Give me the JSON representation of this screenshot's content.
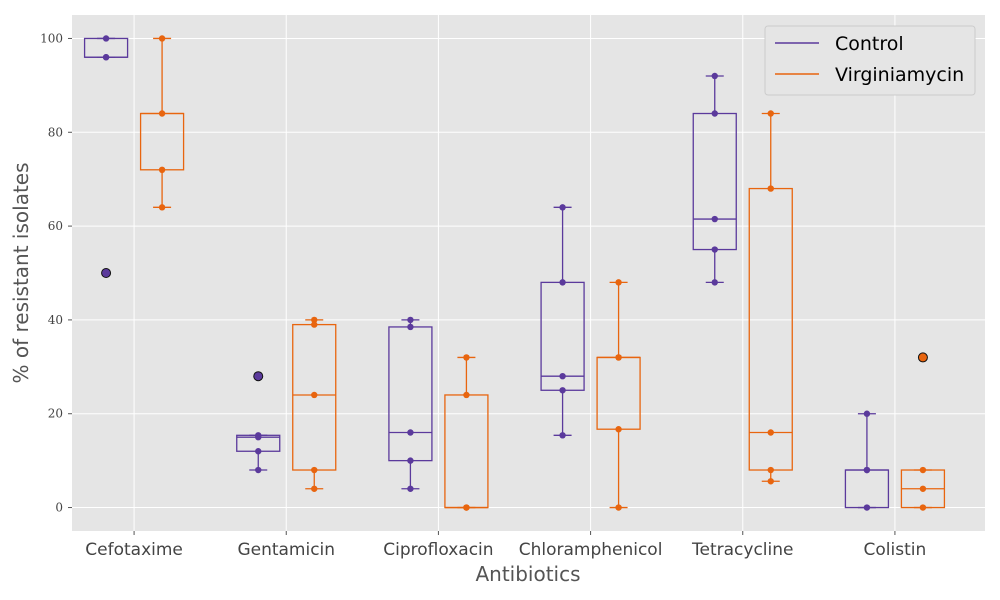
{
  "chart_data": {
    "type": "box",
    "xlabel": "Antibiotics",
    "ylabel": "% of resistant isolates",
    "ylim": [
      -5,
      105
    ],
    "yticks": [
      0,
      20,
      40,
      60,
      80,
      100
    ],
    "categories": [
      "Cefotaxime",
      "Gentamicin",
      "Ciprofloxacin",
      "Chloramphenicol",
      "Tetracycline",
      "Colistin"
    ],
    "grid": true,
    "legend_position": "top-right",
    "series": [
      {
        "name": "Control",
        "color": "#5b3a9c",
        "boxes": [
          {
            "category": "Cefotaxime",
            "whisker_low": 96,
            "q1": 96,
            "median": 96,
            "q3": 100,
            "whisker_high": 100,
            "outliers": [
              50
            ],
            "points": [
              100,
              96,
              96
            ]
          },
          {
            "category": "Gentamicin",
            "whisker_low": 8,
            "q1": 12,
            "median": 15,
            "q3": 15.4,
            "whisker_high": 15.4,
            "outliers": [
              28
            ],
            "points": [
              15.4,
              15,
              12,
              8
            ]
          },
          {
            "category": "Ciprofloxacin",
            "whisker_low": 4,
            "q1": 10,
            "median": 16,
            "q3": 38.5,
            "whisker_high": 40,
            "outliers": [],
            "points": [
              40,
              38.5,
              16,
              10,
              4
            ]
          },
          {
            "category": "Chloramphenicol",
            "whisker_low": 15.4,
            "q1": 25,
            "median": 28,
            "q3": 48,
            "whisker_high": 64,
            "outliers": [],
            "points": [
              64,
              48,
              28,
              25,
              15.4
            ]
          },
          {
            "category": "Tetracycline",
            "whisker_low": 48,
            "q1": 55,
            "median": 61.5,
            "q3": 84,
            "whisker_high": 92,
            "outliers": [],
            "points": [
              92,
              84,
              61.5,
              55,
              48
            ]
          },
          {
            "category": "Colistin",
            "whisker_low": 0,
            "q1": 0,
            "median": 8,
            "q3": 8,
            "whisker_high": 20,
            "outliers": [],
            "points": [
              20,
              8,
              8,
              0
            ]
          }
        ]
      },
      {
        "name": "Virginiamycin",
        "color": "#e8650f",
        "boxes": [
          {
            "category": "Cefotaxime",
            "whisker_low": 64,
            "q1": 72,
            "median": 84,
            "q3": 84,
            "whisker_high": 100,
            "outliers": [],
            "points": [
              100,
              84,
              72,
              64
            ]
          },
          {
            "category": "Gentamicin",
            "whisker_low": 4,
            "q1": 8,
            "median": 24,
            "q3": 39,
            "whisker_high": 40,
            "outliers": [],
            "points": [
              40,
              39,
              24,
              8,
              4
            ]
          },
          {
            "category": "Ciprofloxacin",
            "whisker_low": 0,
            "q1": 0,
            "median": 0,
            "q3": 24,
            "whisker_high": 32,
            "outliers": [],
            "points": [
              32,
              24,
              0,
              0
            ]
          },
          {
            "category": "Chloramphenicol",
            "whisker_low": 0,
            "q1": 16.7,
            "median": 32,
            "q3": 32,
            "whisker_high": 48,
            "outliers": [],
            "points": [
              48,
              32,
              32,
              16.7,
              0
            ]
          },
          {
            "category": "Tetracycline",
            "whisker_low": 5.6,
            "q1": 8,
            "median": 16,
            "q3": 68,
            "whisker_high": 84,
            "outliers": [],
            "points": [
              84,
              68,
              16,
              8,
              5.6
            ]
          },
          {
            "category": "Colistin",
            "whisker_low": 0,
            "q1": 0,
            "median": 4,
            "q3": 8,
            "whisker_high": 8,
            "outliers": [
              32
            ],
            "points": [
              8,
              4,
              0
            ]
          }
        ]
      }
    ]
  }
}
